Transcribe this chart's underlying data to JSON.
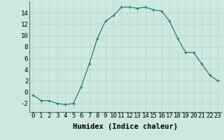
{
  "xlabel": "Humidex (Indice chaleur)",
  "x_values": [
    0,
    1,
    2,
    3,
    4,
    5,
    6,
    7,
    8,
    9,
    10,
    11,
    12,
    13,
    14,
    15,
    16,
    17,
    18,
    19,
    20,
    21,
    22,
    23
  ],
  "y_values": [
    -0.5,
    -1.5,
    -1.5,
    -2.0,
    -2.2,
    -2.0,
    1.0,
    5.0,
    9.5,
    12.5,
    13.5,
    15.0,
    15.0,
    14.8,
    15.0,
    14.5,
    14.3,
    12.5,
    9.5,
    7.0,
    7.0,
    5.0,
    3.0,
    2.0
  ],
  "line_color": "#2e7d6e",
  "marker": "+",
  "background_color": "#cce8e0",
  "grid_color": "#b8d8d0",
  "ylim": [
    -3.5,
    16
  ],
  "yticks": [
    -2,
    0,
    2,
    4,
    6,
    8,
    10,
    12,
    14
  ],
  "tick_fontsize": 6.5,
  "label_fontsize": 7.5
}
